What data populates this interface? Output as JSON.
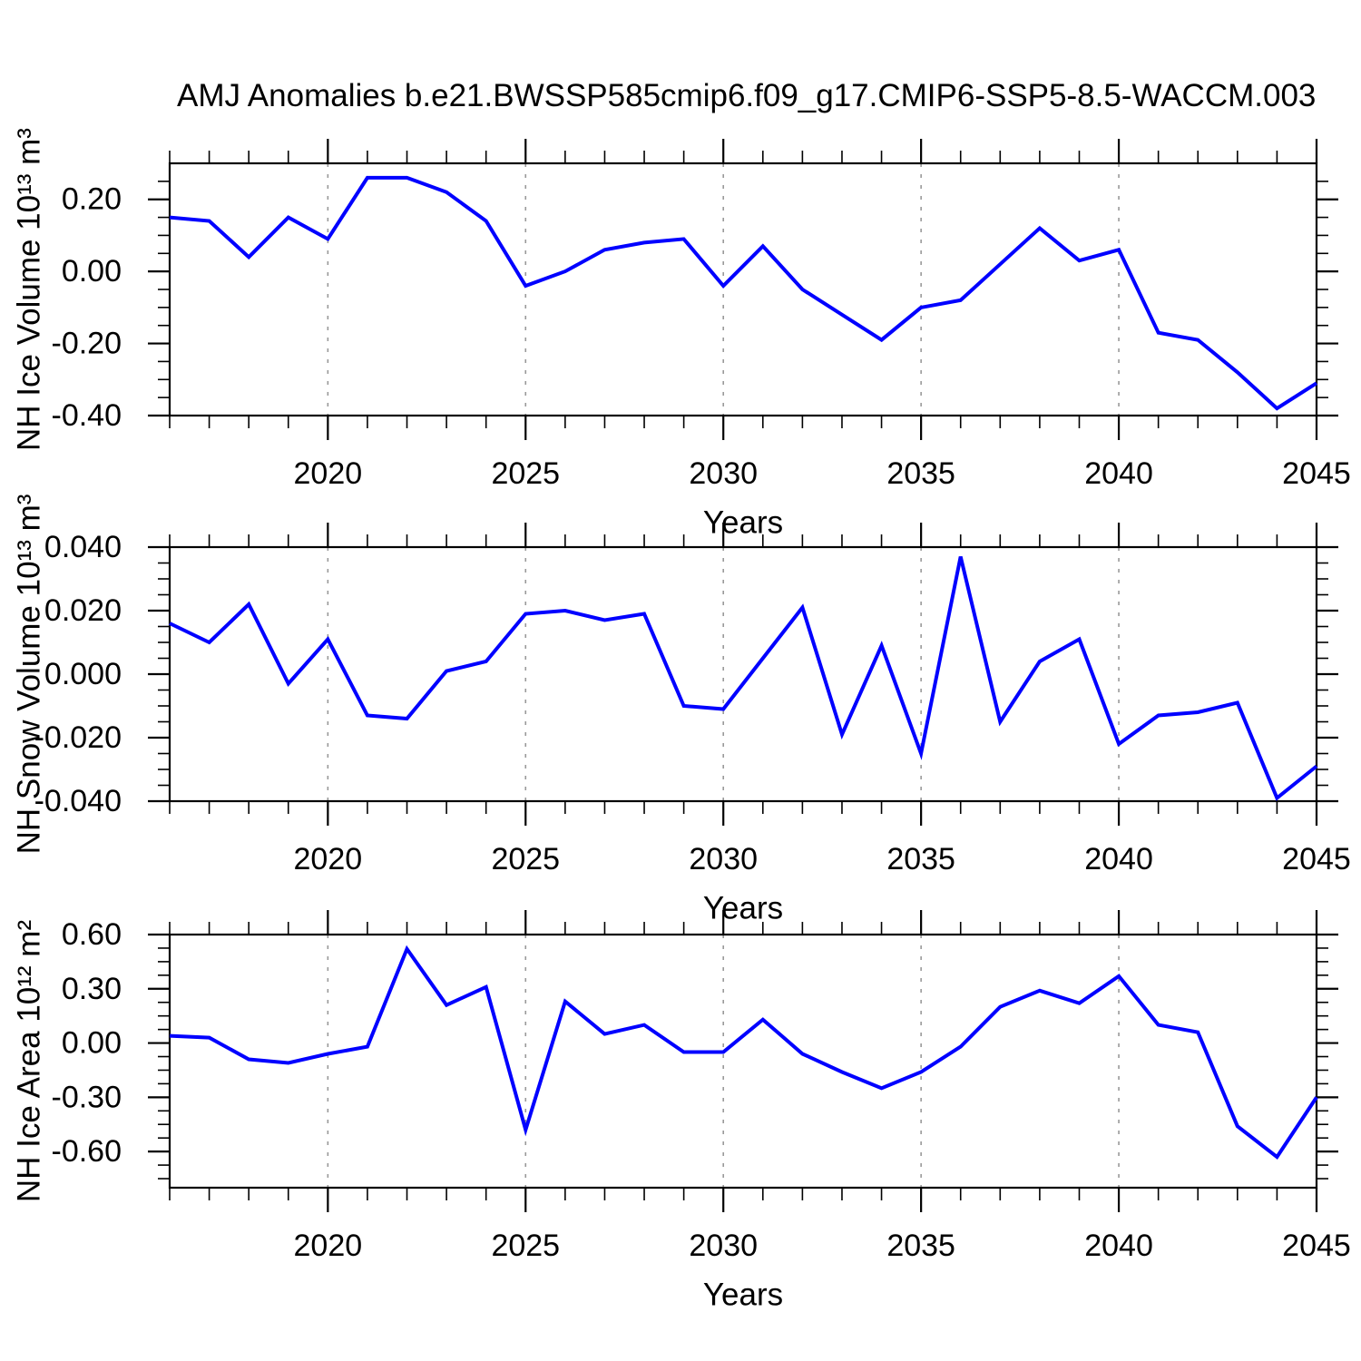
{
  "title": "AMJ Anomalies b.e21.BWSSP585cmip6.f09_g17.CMIP6-SSP5-8.5-WACCM.003",
  "colors": {
    "background": "#ffffff",
    "line": "#0000ff",
    "axis": "#000000",
    "grid": "#999999",
    "text": "#000000"
  },
  "x_axis": {
    "label": "Years",
    "start": 2016,
    "end": 2045,
    "minor_step": 1,
    "major_ticks": [
      {
        "year": 2020,
        "label": "2020"
      },
      {
        "year": 2025,
        "label": "2025"
      },
      {
        "year": 2030,
        "label": "2030"
      },
      {
        "year": 2035,
        "label": "2035"
      },
      {
        "year": 2040,
        "label": "2040"
      },
      {
        "year": 2045,
        "label": "2045"
      }
    ],
    "gridline_years": [
      2020,
      2025,
      2030,
      2035,
      2040
    ]
  },
  "chart_data": [
    {
      "type": "line",
      "name": "ice-volume",
      "ylabel": "NH Ice Volume 10¹³ m³",
      "xlabel": "Years",
      "ylim": [
        -0.4,
        0.3
      ],
      "y_minor_step": 0.05,
      "grid": "vertical-dashed",
      "legend_position": "none",
      "yticks": [
        {
          "v": 0.2,
          "label": "0.20"
        },
        {
          "v": 0.0,
          "label": "0.00"
        },
        {
          "v": -0.2,
          "label": "-0.20"
        },
        {
          "v": -0.4,
          "label": "-0.40"
        }
      ],
      "x": [
        2016,
        2017,
        2018,
        2019,
        2020,
        2021,
        2022,
        2023,
        2024,
        2025,
        2026,
        2027,
        2028,
        2029,
        2030,
        2031,
        2032,
        2033,
        2034,
        2035,
        2036,
        2037,
        2038,
        2039,
        2040,
        2041,
        2042,
        2043,
        2044,
        2045
      ],
      "values": [
        0.15,
        0.14,
        0.04,
        0.15,
        0.09,
        0.26,
        0.26,
        0.22,
        0.14,
        -0.04,
        0.0,
        0.06,
        0.08,
        0.09,
        -0.04,
        0.07,
        -0.05,
        -0.12,
        -0.19,
        -0.1,
        -0.08,
        0.02,
        0.12,
        0.03,
        0.06,
        -0.17,
        -0.19,
        -0.28,
        -0.38,
        -0.31
      ]
    },
    {
      "type": "line",
      "name": "snow-volume",
      "ylabel": "NH Snow Volume 10¹³ m³",
      "xlabel": "Years",
      "ylim": [
        -0.04,
        0.04
      ],
      "y_minor_step": 0.005,
      "grid": "vertical-dashed",
      "legend_position": "none",
      "yticks": [
        {
          "v": 0.04,
          "label": "0.040"
        },
        {
          "v": 0.02,
          "label": "0.020"
        },
        {
          "v": 0.0,
          "label": "0.000"
        },
        {
          "v": -0.02,
          "label": "-0.020"
        },
        {
          "v": -0.04,
          "label": "-0.040"
        }
      ],
      "x": [
        2016,
        2017,
        2018,
        2019,
        2020,
        2021,
        2022,
        2023,
        2024,
        2025,
        2026,
        2027,
        2028,
        2029,
        2030,
        2031,
        2032,
        2033,
        2034,
        2035,
        2036,
        2037,
        2038,
        2039,
        2040,
        2041,
        2042,
        2043,
        2044,
        2045
      ],
      "values": [
        0.016,
        0.01,
        0.022,
        -0.003,
        0.011,
        -0.013,
        -0.014,
        0.001,
        0.004,
        0.019,
        0.02,
        0.017,
        0.019,
        -0.01,
        -0.011,
        0.005,
        0.021,
        -0.019,
        0.009,
        -0.025,
        0.037,
        -0.015,
        0.004,
        0.011,
        -0.022,
        -0.013,
        -0.012,
        -0.009,
        -0.039,
        -0.029
      ]
    },
    {
      "type": "line",
      "name": "ice-area",
      "ylabel": "NH Ice Area 10¹² m²",
      "xlabel": "Years",
      "ylim": [
        -0.8,
        0.6
      ],
      "y_minor_step": 0.075,
      "grid": "vertical-dashed",
      "legend_position": "none",
      "yticks": [
        {
          "v": 0.6,
          "label": "0.60"
        },
        {
          "v": 0.3,
          "label": "0.30"
        },
        {
          "v": 0.0,
          "label": "0.00"
        },
        {
          "v": -0.3,
          "label": "-0.30"
        },
        {
          "v": -0.6,
          "label": "-0.60"
        }
      ],
      "x": [
        2016,
        2017,
        2018,
        2019,
        2020,
        2021,
        2022,
        2023,
        2024,
        2025,
        2026,
        2027,
        2028,
        2029,
        2030,
        2031,
        2032,
        2033,
        2034,
        2035,
        2036,
        2037,
        2038,
        2039,
        2040,
        2041,
        2042,
        2043,
        2044,
        2045
      ],
      "values": [
        0.04,
        0.03,
        -0.09,
        -0.11,
        -0.06,
        -0.02,
        0.52,
        0.21,
        0.31,
        -0.48,
        0.23,
        0.05,
        0.1,
        -0.05,
        -0.05,
        0.13,
        -0.06,
        -0.16,
        -0.25,
        -0.16,
        -0.02,
        0.2,
        0.29,
        0.22,
        0.37,
        0.1,
        0.06,
        -0.46,
        -0.63,
        -0.3
      ]
    }
  ]
}
